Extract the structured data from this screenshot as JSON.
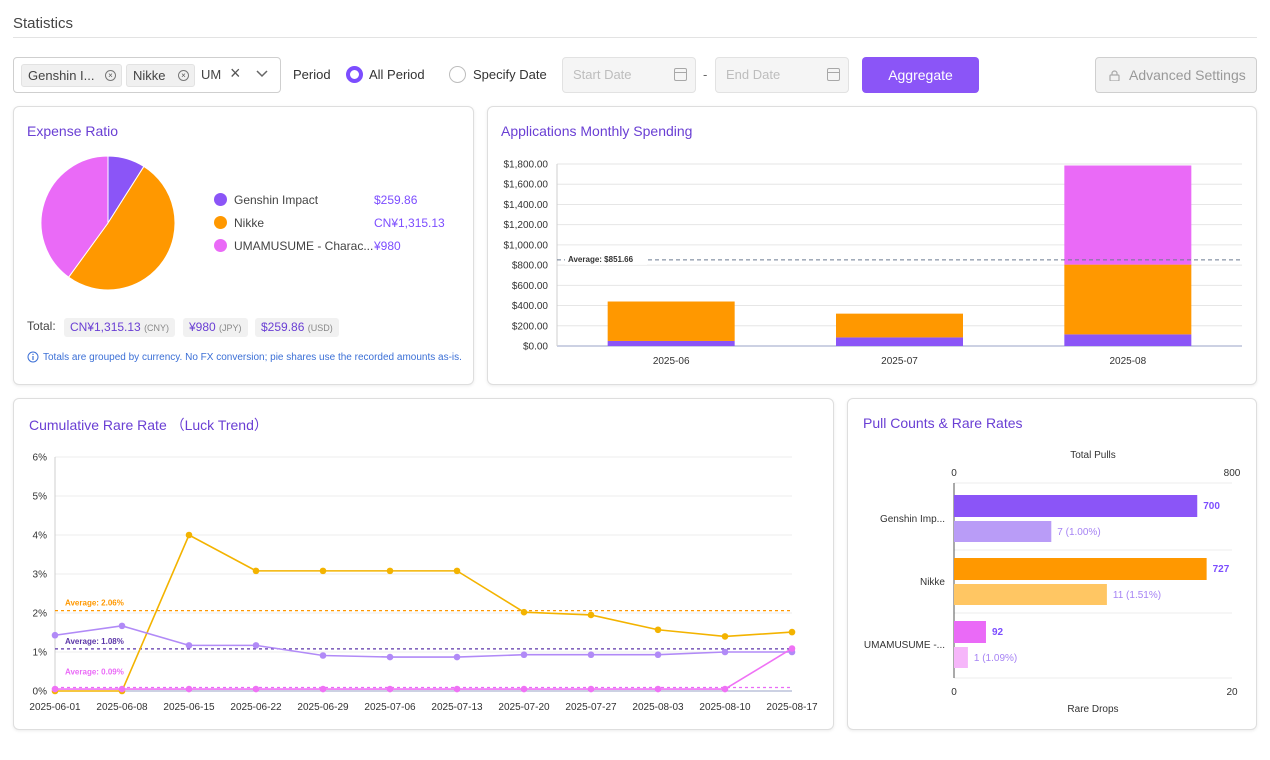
{
  "page": {
    "title": "Statistics"
  },
  "toolbar": {
    "filter_tags": [
      {
        "label": "Genshin I..."
      },
      {
        "label": "Nikke"
      }
    ],
    "filter_search_value": "UM",
    "period_label": "Period",
    "radio_all": "All Period",
    "radio_specify": "Specify Date",
    "start_placeholder": "Start Date",
    "date_separator": "-",
    "end_placeholder": "End Date",
    "aggregate_label": "Aggregate",
    "advanced_label": "Advanced Settings",
    "period_selected": "All Period"
  },
  "expense_ratio": {
    "title": "Expense Ratio",
    "legend": [
      {
        "name": "Genshin Impact",
        "value": "$259.86",
        "color": "#8b55f7",
        "share": 0.09
      },
      {
        "name": "Nikke",
        "value": "CN¥1,315.13",
        "color": "#ff9800",
        "share": 0.51
      },
      {
        "name": "UMAMUSUME - Charac...",
        "value": "¥980",
        "color": "#ea6af7",
        "share": 0.4
      }
    ],
    "total_label": "Total:",
    "totals": [
      {
        "amount": "CN¥1,315.13",
        "unit": "(CNY)"
      },
      {
        "amount": "¥980",
        "unit": "(JPY)"
      },
      {
        "amount": "$259.86",
        "unit": "(USD)"
      }
    ],
    "info_icon": "info-icon",
    "note": "Totals are grouped by currency. No FX conversion; pie shares use the recorded amounts as-is."
  },
  "monthly": {
    "title": "Applications Monthly Spending",
    "average_label": "Average: $851.66"
  },
  "luck": {
    "title": "Cumulative Rare Rate （Luck Trend）",
    "avg_labels": [
      "Average: 2.06%",
      "Average: 1.08%",
      "Average: 0.09%"
    ]
  },
  "pulls": {
    "title": "Pull Counts & Rare Rates",
    "top_axis_label": "Total Pulls",
    "bottom_axis_label": "Rare Drops"
  },
  "chart_data": [
    {
      "type": "pie",
      "title": "Expense Ratio",
      "categories": [
        "Genshin Impact",
        "Nikke",
        "UMAMUSUME - Charac..."
      ],
      "values": [
        0.09,
        0.51,
        0.4
      ],
      "colors": [
        "#8b55f7",
        "#ff9800",
        "#ea6af7"
      ]
    },
    {
      "type": "bar",
      "stacked": true,
      "title": "Applications Monthly Spending",
      "categories": [
        "2025-06",
        "2025-07",
        "2025-08"
      ],
      "series": [
        {
          "name": "Genshin Impact",
          "values": [
            50,
            85,
            115
          ],
          "color": "#8b55f7"
        },
        {
          "name": "Nikke",
          "values": [
            390,
            235,
            690
          ],
          "color": "#ff9800"
        },
        {
          "name": "UMAMUSUME",
          "values": [
            0,
            0,
            980
          ],
          "color": "#ea6af7"
        }
      ],
      "ylim": [
        0,
        1800
      ],
      "yticks": [
        "$0.00",
        "$200.00",
        "$400.00",
        "$600.00",
        "$800.00",
        "$1,000.00",
        "$1,200.00",
        "$1,400.00",
        "$1,600.00",
        "$1,800.00"
      ],
      "average": 851.66
    },
    {
      "type": "line",
      "title": "Cumulative Rare Rate （Luck Trend）",
      "x": [
        "2025-06-01",
        "2025-06-08",
        "2025-06-15",
        "2025-06-22",
        "2025-06-29",
        "2025-07-06",
        "2025-07-13",
        "2025-07-20",
        "2025-07-27",
        "2025-08-03",
        "2025-08-10",
        "2025-08-17"
      ],
      "yticks": [
        "0%",
        "1%",
        "2%",
        "3%",
        "4%",
        "5%",
        "6%"
      ],
      "ylim": [
        0,
        6
      ],
      "series": [
        {
          "name": "Nikke",
          "color": "#f3b300",
          "values": [
            0,
            0,
            4.0,
            3.08,
            3.08,
            3.08,
            3.08,
            2.02,
            1.95,
            1.57,
            1.4,
            1.51
          ]
        },
        {
          "name": "Genshin Impact",
          "color": "#b18af7",
          "values": [
            1.43,
            1.67,
            1.17,
            1.17,
            0.91,
            0.87,
            0.87,
            0.93,
            0.93,
            0.93,
            1.0,
            1.0
          ]
        },
        {
          "name": "UMAMUSUME",
          "color": "#ef72f5",
          "values": [
            0.05,
            0.05,
            0.05,
            0.05,
            0.05,
            0.05,
            0.05,
            0.05,
            0.05,
            0.05,
            0.05,
            1.09
          ]
        }
      ],
      "averages": [
        {
          "value": 2.06,
          "color": "#ff9800"
        },
        {
          "value": 1.08,
          "color": "#5b35a8"
        },
        {
          "value": 0.09,
          "color": "#ea6af7"
        }
      ]
    },
    {
      "type": "bar",
      "orientation": "horizontal",
      "title": "Pull Counts & Rare Rates",
      "categories": [
        "Genshin Imp...",
        "Nikke",
        "UMAMUSUME -..."
      ],
      "pulls": [
        700,
        727,
        92
      ],
      "pull_labels": [
        "700",
        "727",
        "92"
      ],
      "rare_drops": [
        7,
        11,
        1
      ],
      "rare_labels": [
        "7 (1.00%)",
        "11 (1.51%)",
        "1 (1.09%)"
      ],
      "pull_colors": [
        "#8b55f7",
        "#ff9800",
        "#ea6af7"
      ],
      "rare_colors": [
        "#b99cf7",
        "#ffc663",
        "#f6b6fa"
      ],
      "pull_label_colors": [
        "#7c4dff",
        "#7c4dff",
        "#7c4dff"
      ],
      "rare_label_colors": [
        "#a683f4",
        "#a683f4",
        "#a683f4"
      ],
      "pull_axis": {
        "min": 0,
        "max": 800,
        "min_label": "0",
        "max_label": "800"
      },
      "rare_axis": {
        "min": 0,
        "max": 20,
        "min_label": "0",
        "max_label": "20"
      }
    }
  ]
}
